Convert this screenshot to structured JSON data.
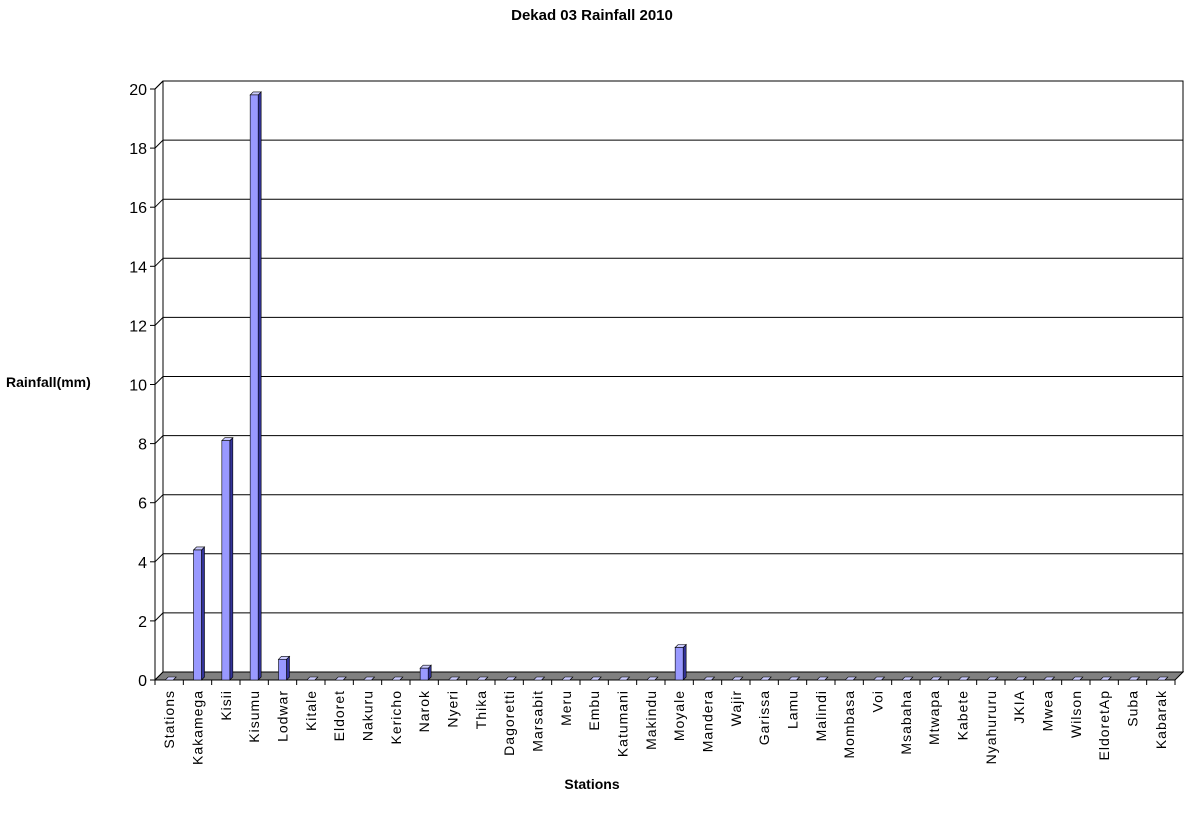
{
  "chart_data": {
    "type": "bar",
    "title": "Dekad 03 Rainfall 2010",
    "xlabel": "Stations",
    "ylabel": "Rainfall(mm)",
    "ylim": [
      0,
      20
    ],
    "yticks": [
      0,
      2,
      4,
      6,
      8,
      10,
      12,
      14,
      16,
      18,
      20
    ],
    "grid": true,
    "categories": [
      "Stations",
      "Kakamega",
      "Kisii",
      "Kisumu",
      "Lodwar",
      "Kitale",
      "Eldoret",
      "Nakuru",
      "Kericho",
      "Narok",
      "Nyeri",
      "Thika",
      "Dagoretti",
      "Marsabit",
      "Meru",
      "Embu",
      "Katumani",
      "Makindu",
      "Moyale",
      "Mandera",
      "Wajir",
      "Garissa",
      "Lamu",
      "Malindi",
      "Mombasa",
      "Voi",
      "Msabaha",
      "Mtwapa",
      "Kabete",
      "Nyahururu",
      "JKIA",
      "Mwea",
      "Wilson",
      "EldoretAp",
      "Suba",
      "Kabarak"
    ],
    "values": [
      0,
      4.4,
      8.1,
      19.8,
      0.7,
      0,
      0,
      0,
      0,
      0.4,
      0,
      0,
      0,
      0,
      0,
      0,
      0,
      0,
      1.1,
      0,
      0,
      0,
      0,
      0,
      0,
      0,
      0,
      0,
      0,
      0,
      0,
      0,
      0,
      0,
      0,
      0
    ],
    "colors": {
      "bar_front": "#9999ff",
      "bar_side": "#333399",
      "bar_top": "#ccccff",
      "floor": "#808080",
      "grid": "#000000"
    }
  }
}
